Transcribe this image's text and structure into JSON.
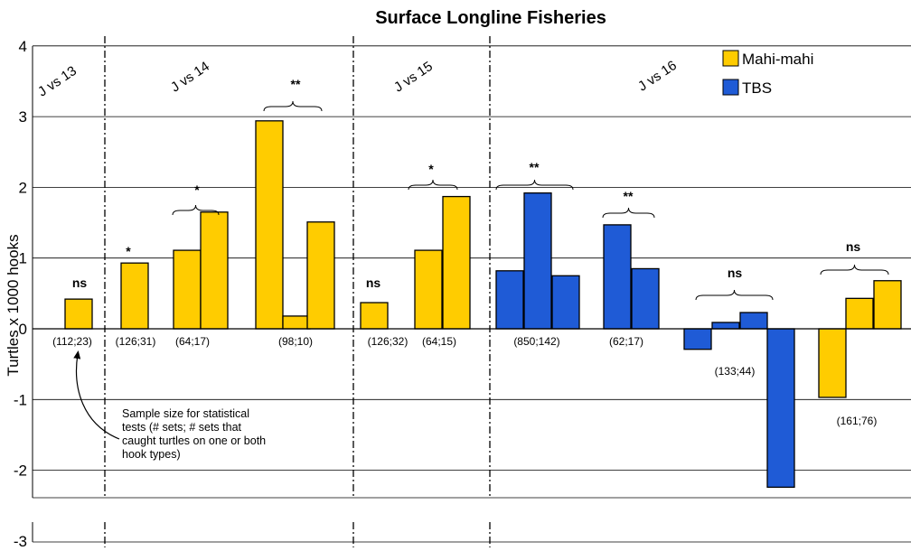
{
  "chart_data": {
    "type": "bar",
    "title": "Surface Longline Fisheries",
    "ylabel": "Turtles x 1000 hooks",
    "ylim": [
      -3,
      4
    ],
    "yticks": [
      "4",
      "3",
      "2",
      "1",
      "0",
      "-1",
      "-2",
      "-3"
    ],
    "grid": true,
    "legend_position": "top-right",
    "legend": [
      {
        "name": "Mahi-mahi",
        "color": "#FFCC00"
      },
      {
        "name": "TBS",
        "color": "#1F5BD6"
      }
    ],
    "comparisons": [
      "J vs 13",
      "J vs 14",
      "J vs 15",
      "J vs 16"
    ],
    "bars": [
      {
        "value": 0.42,
        "series": "Mahi-mahi"
      },
      {
        "value": 0.93,
        "series": "Mahi-mahi"
      },
      {
        "value": 1.11,
        "series": "Mahi-mahi"
      },
      {
        "value": 1.65,
        "series": "Mahi-mahi"
      },
      {
        "value": 2.94,
        "series": "Mahi-mahi"
      },
      {
        "value": 0.18,
        "series": "Mahi-mahi"
      },
      {
        "value": 1.51,
        "series": "Mahi-mahi"
      },
      {
        "value": 0.37,
        "series": "Mahi-mahi"
      },
      {
        "value": 1.11,
        "series": "Mahi-mahi"
      },
      {
        "value": 1.87,
        "series": "Mahi-mahi"
      },
      {
        "value": 0.82,
        "series": "TBS"
      },
      {
        "value": 1.92,
        "series": "TBS"
      },
      {
        "value": 0.75,
        "series": "TBS"
      },
      {
        "value": 1.47,
        "series": "TBS"
      },
      {
        "value": 0.85,
        "series": "TBS"
      },
      {
        "value": -0.29,
        "series": "TBS"
      },
      {
        "value": 0.09,
        "series": "TBS"
      },
      {
        "value": 0.23,
        "series": "TBS"
      },
      {
        "value": -2.24,
        "series": "TBS"
      },
      {
        "value": -0.97,
        "series": "Mahi-mahi"
      },
      {
        "value": 0.43,
        "series": "Mahi-mahi"
      },
      {
        "value": 0.68,
        "series": "Mahi-mahi"
      }
    ],
    "groups": [
      {
        "bars": [
          0
        ],
        "sample_size": "(112;23)",
        "significance": "ns"
      },
      {
        "bars": [
          1
        ],
        "sample_size": "(126;31)",
        "significance": "*"
      },
      {
        "bars": [
          2,
          3
        ],
        "sample_size": "(64;17)",
        "significance": "*"
      },
      {
        "bars": [
          4,
          5,
          6
        ],
        "sample_size": "(98;10)",
        "significance": "**"
      },
      {
        "bars": [
          7
        ],
        "sample_size": "(126;32)",
        "significance": "ns"
      },
      {
        "bars": [
          8,
          9
        ],
        "sample_size": "(64;15)",
        "significance": "*"
      },
      {
        "bars": [
          10,
          11,
          12
        ],
        "sample_size": "(850;142)",
        "significance": "**"
      },
      {
        "bars": [
          13,
          14
        ],
        "sample_size": "(62;17)",
        "significance": "**"
      },
      {
        "bars": [
          15,
          16,
          17,
          18
        ],
        "sample_size": "(133;44)",
        "significance": "ns"
      },
      {
        "bars": [
          19,
          20,
          21
        ],
        "sample_size": "(161;76)",
        "significance": "ns"
      }
    ],
    "annotation": [
      "Sample size for statistical",
      "tests   (# sets; # sets that",
      "caught turtles on one or both",
      "hook types)"
    ]
  }
}
